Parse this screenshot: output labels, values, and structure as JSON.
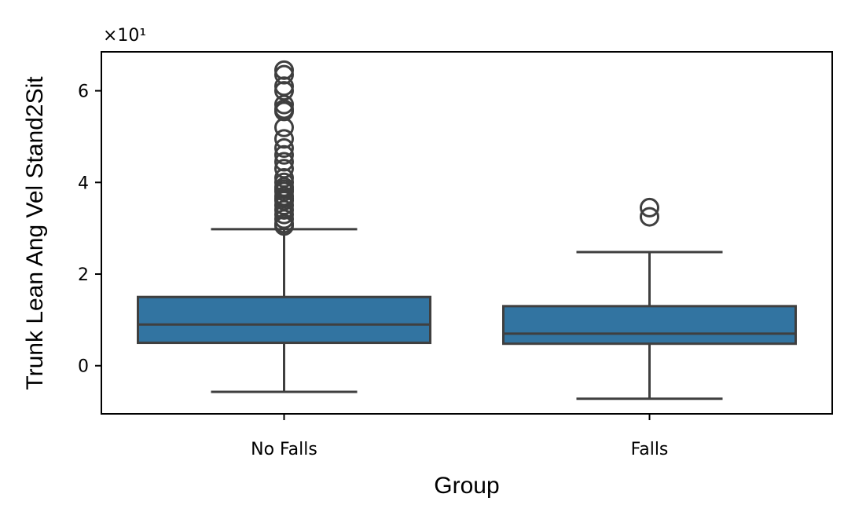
{
  "chart_data": {
    "type": "box",
    "xlabel": "Group",
    "ylabel": "Trunk Lean Ang Vel Stand2Sit",
    "scale_offset_label": "×10¹",
    "ylim": [
      -1.05,
      6.85
    ],
    "yticks": [
      0,
      2,
      4,
      6
    ],
    "categories": [
      "No Falls",
      "Falls"
    ],
    "box_color": "#3274a1",
    "line_color": "#3f3f3f",
    "boxes": [
      {
        "category": "No Falls",
        "whisker_low": -0.57,
        "q1": 0.5,
        "median": 0.9,
        "q3": 1.5,
        "whisker_high": 2.98,
        "outliers": [
          3.05,
          3.1,
          3.2,
          3.3,
          3.4,
          3.5,
          3.6,
          3.65,
          3.7,
          3.8,
          3.85,
          3.9,
          4.0,
          4.1,
          4.3,
          4.45,
          4.6,
          4.75,
          4.95,
          5.2,
          5.55,
          5.6,
          5.7,
          6.0,
          6.1,
          6.35,
          6.45
        ]
      },
      {
        "category": "Falls",
        "whisker_low": -0.72,
        "q1": 0.48,
        "median": 0.7,
        "q3": 1.3,
        "whisker_high": 2.48,
        "outliers": [
          3.25,
          3.45
        ]
      }
    ]
  }
}
